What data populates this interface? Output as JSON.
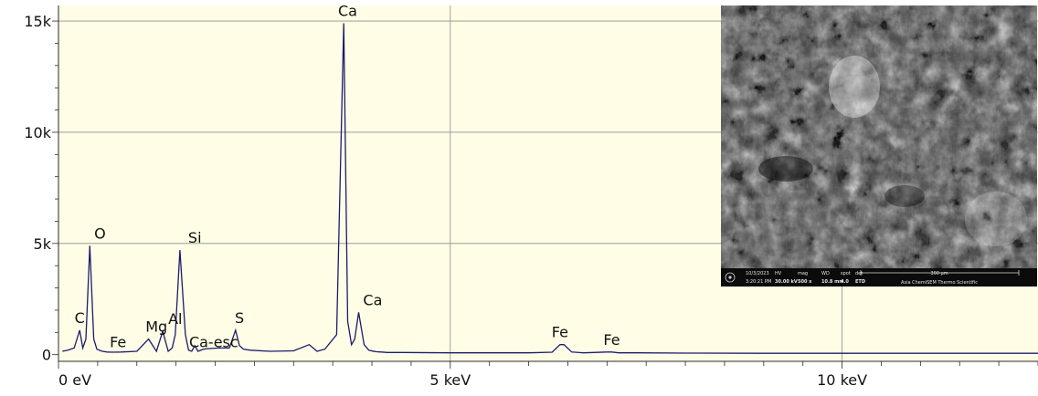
{
  "colors": {
    "plot_bg": "#fffde6",
    "grid": "#8e8e8e",
    "axis": "#2a2a2a",
    "spectrum": "#1c1c6e"
  },
  "chart_data": {
    "type": "line",
    "title": "",
    "xlabel": "",
    "ylabel": "",
    "xlim": [
      0,
      12.5
    ],
    "ylim": [
      -300,
      15700
    ],
    "grid": true,
    "x_ticks": [
      {
        "value": 0,
        "label": "0 eV"
      },
      {
        "value": 5,
        "label": "5 keV"
      },
      {
        "value": 10,
        "label": "10 keV"
      }
    ],
    "y_ticks": [
      {
        "value": 0,
        "label": "0"
      },
      {
        "value": 5000,
        "label": "5k"
      },
      {
        "value": 10000,
        "label": "10k"
      },
      {
        "value": 15000,
        "label": "15k"
      }
    ],
    "series": [
      {
        "x": [
          0.05,
          0.12,
          0.2,
          0.27,
          0.31,
          0.35,
          0.4,
          0.45,
          0.49,
          0.52,
          0.56,
          0.62,
          0.7,
          0.8,
          1.0,
          1.15,
          1.25,
          1.33,
          1.4,
          1.45,
          1.49,
          1.55,
          1.62,
          1.66,
          1.7,
          1.74,
          1.78,
          1.85,
          1.95,
          2.05,
          2.18,
          2.26,
          2.31,
          2.36,
          2.45,
          2.7,
          3.0,
          3.2,
          3.3,
          3.4,
          3.55,
          3.64,
          3.69,
          3.74,
          3.78,
          3.83,
          3.9,
          3.96,
          4.01,
          4.06,
          4.12,
          4.2,
          4.4,
          5.0,
          6.0,
          6.3,
          6.4,
          6.45,
          6.55,
          6.7,
          7.0,
          7.06,
          7.15,
          7.4,
          8.0,
          9.0,
          10.0,
          11.0,
          12.0,
          12.5
        ],
        "y": [
          150,
          200,
          300,
          1100,
          300,
          700,
          4900,
          700,
          250,
          200,
          150,
          120,
          110,
          120,
          150,
          700,
          150,
          1050,
          150,
          300,
          900,
          4700,
          900,
          200,
          150,
          400,
          150,
          250,
          280,
          300,
          300,
          1100,
          400,
          250,
          200,
          150,
          170,
          450,
          150,
          250,
          900,
          14900,
          1500,
          450,
          700,
          1900,
          450,
          200,
          160,
          130,
          120,
          100,
          100,
          80,
          80,
          110,
          450,
          450,
          120,
          80,
          120,
          120,
          80,
          80,
          70,
          60,
          60,
          60,
          60,
          60
        ]
      }
    ],
    "peak_labels": [
      {
        "label": "C",
        "x": 0.27,
        "y": 1100
      },
      {
        "label": "O",
        "x": 0.53,
        "y": 4900
      },
      {
        "label": "Fe",
        "x": 0.76,
        "y": 0
      },
      {
        "label": "Mg",
        "x": 1.25,
        "y": 700
      },
      {
        "label": "Al",
        "x": 1.49,
        "y": 1050
      },
      {
        "label": "Si",
        "x": 1.74,
        "y": 4700
      },
      {
        "label": "Ca-esc",
        "x": 1.98,
        "y": 0
      },
      {
        "label": "S",
        "x": 2.31,
        "y": 1100
      },
      {
        "label": "Ca",
        "x": 3.69,
        "y": 14900
      },
      {
        "label": "Ca",
        "x": 4.01,
        "y": 1900
      },
      {
        "label": "Fe",
        "x": 6.4,
        "y": 450
      },
      {
        "label": "Fe",
        "x": 7.06,
        "y": 120
      }
    ]
  },
  "sem_inset": {
    "date": "10/3/2023",
    "time": "3:20:21 PM",
    "fields": [
      {
        "label": "HV",
        "value": "30.00 kV"
      },
      {
        "label": "mag",
        "value": "500 x"
      },
      {
        "label": "WD",
        "value": "10.8 mm"
      },
      {
        "label": "spot",
        "value": "4.0"
      },
      {
        "label": "det",
        "value": "ETD"
      }
    ],
    "scale_bar": "300 µm",
    "footer": "Asia ChemiSEM Thermo Scientific"
  }
}
